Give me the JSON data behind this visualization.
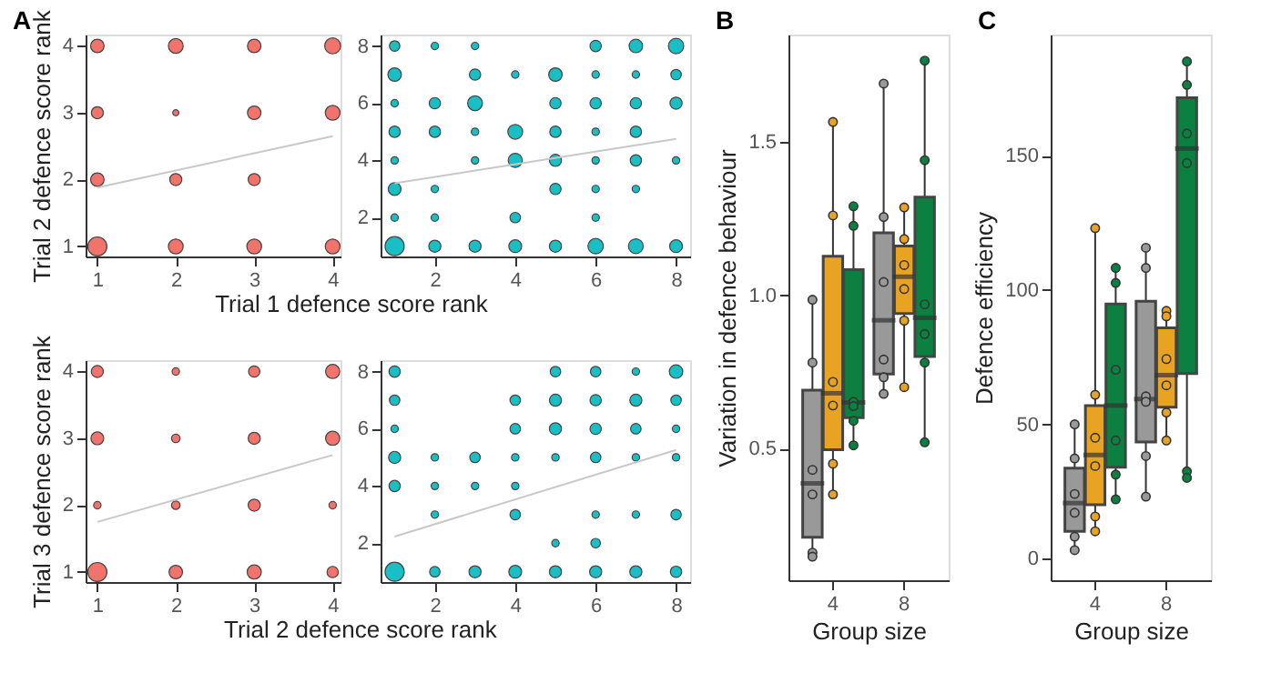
{
  "chart_data": [
    {
      "type": "bubble",
      "title": "A",
      "xlabel": "Trial 1 defence score rank",
      "ylabel": "Trial 2 defence score rank",
      "marker": "circle",
      "xlim": [
        0.85,
        4.1
      ],
      "ylim": [
        0.85,
        4.17
      ],
      "xticks": [
        1,
        2,
        3,
        4
      ],
      "yticks": [
        1,
        2,
        3,
        4
      ],
      "series": [
        {
          "color": "#f0736c",
          "x": [
            1,
            2,
            3,
            4,
            1,
            2,
            3,
            4,
            1,
            2,
            3,
            1,
            2,
            3,
            4
          ],
          "values": [
            4,
            4,
            4,
            4,
            3,
            3,
            3,
            3,
            2,
            2,
            2,
            1,
            1,
            1,
            1
          ],
          "sizes": [
            0.5,
            0.6,
            0.5,
            0.7,
            0.4,
            0.1,
            0.5,
            0.6,
            0.5,
            0.4,
            0.4,
            1,
            0.6,
            0.6,
            0.6
          ]
        },
        {
          "type": "line",
          "marker": "none",
          "color": "#c8c8c8",
          "x": [
            1,
            4
          ],
          "values": [
            1.88,
            2.65
          ]
        }
      ]
    },
    {
      "type": "bubble",
      "marker": "circle",
      "xlim": [
        0.65,
        8.35
      ],
      "ylim": [
        0.64,
        8.4
      ],
      "xticks": [
        2,
        4,
        6,
        8
      ],
      "yticks": [
        2,
        4,
        6,
        8
      ],
      "series": [
        {
          "color": "#19bfc4",
          "x": [
            1,
            2,
            3,
            6,
            7,
            8,
            1,
            3,
            4,
            5,
            6,
            7,
            8,
            1,
            2,
            3,
            5,
            6,
            7,
            8,
            1,
            2,
            3,
            4,
            5,
            6,
            7,
            1,
            3,
            4,
            5,
            6,
            7,
            8,
            1,
            2,
            5,
            6,
            7,
            1,
            2,
            4,
            6,
            1,
            2,
            3,
            4,
            5,
            6,
            7,
            8
          ],
          "values": [
            8,
            8,
            8,
            8,
            8,
            8,
            7,
            7,
            7,
            7,
            7,
            7,
            7,
            6,
            6,
            6,
            6,
            6,
            6,
            6,
            5,
            5,
            5,
            5,
            5,
            5,
            5,
            4,
            4,
            4,
            4,
            4,
            4,
            4,
            3,
            3,
            3,
            3,
            3,
            2,
            2,
            2,
            2,
            1,
            1,
            1,
            1,
            1,
            1,
            1,
            1
          ],
          "sizes": [
            0.3,
            0.15,
            0.15,
            0.35,
            0.5,
            0.65,
            0.5,
            0.35,
            0.15,
            0.5,
            0.15,
            0.15,
            0.3,
            0.15,
            0.35,
            0.6,
            0.35,
            0.35,
            0.35,
            0.4,
            0.35,
            0.35,
            0.15,
            0.6,
            0.35,
            0.15,
            0.35,
            0.15,
            0.15,
            0.55,
            0.4,
            0.15,
            0.35,
            0.15,
            0.45,
            0.15,
            0.35,
            0.15,
            0.15,
            0.15,
            0.15,
            0.3,
            0.15,
            1,
            0.4,
            0.4,
            0.45,
            0.4,
            0.65,
            0.6,
            0.45
          ]
        },
        {
          "type": "line",
          "marker": "none",
          "color": "#c8c8c8",
          "x": [
            1,
            8
          ],
          "values": [
            3.2,
            4.75
          ]
        }
      ]
    },
    {
      "type": "bubble",
      "xlabel": "Trial 2 defence score rank",
      "ylabel": "Trial 3 defence score rank",
      "marker": "circle",
      "xlim": [
        0.85,
        4.1
      ],
      "ylim": [
        0.85,
        4.17
      ],
      "xticks": [
        1,
        2,
        3,
        4
      ],
      "yticks": [
        1,
        2,
        3,
        4
      ],
      "series": [
        {
          "color": "#f0736c",
          "x": [
            1,
            2,
            3,
            4,
            1,
            2,
            3,
            4,
            1,
            2,
            3,
            4,
            1,
            2,
            3,
            4
          ],
          "values": [
            4,
            4,
            4,
            4,
            3,
            3,
            3,
            3,
            2,
            2,
            2,
            2,
            1,
            1,
            1,
            1
          ],
          "sizes": [
            0.4,
            0.15,
            0.35,
            0.55,
            0.45,
            0.2,
            0.4,
            0.55,
            0.15,
            0.2,
            0.4,
            0.15,
            1,
            0.5,
            0.55,
            0.35
          ]
        },
        {
          "type": "line",
          "marker": "none",
          "color": "#c8c8c8",
          "x": [
            1,
            4
          ],
          "values": [
            1.75,
            2.75
          ]
        }
      ]
    },
    {
      "type": "bubble",
      "marker": "circle",
      "xlim": [
        0.65,
        8.35
      ],
      "ylim": [
        0.64,
        8.4
      ],
      "xticks": [
        2,
        4,
        6,
        8
      ],
      "yticks": [
        2,
        4,
        6,
        8
      ],
      "series": [
        {
          "color": "#19bfc4",
          "x": [
            1,
            5,
            6,
            7,
            8,
            1,
            4,
            5,
            6,
            7,
            8,
            1,
            4,
            5,
            6,
            7,
            8,
            1,
            2,
            3,
            4,
            5,
            6,
            7,
            8,
            1,
            2,
            3,
            4,
            2,
            4,
            6,
            7,
            8,
            5,
            6,
            1,
            2,
            3,
            4,
            5,
            6,
            7,
            8
          ],
          "values": [
            8,
            8,
            8,
            8,
            8,
            7,
            7,
            7,
            7,
            7,
            7,
            6,
            6,
            6,
            6,
            6,
            6,
            5,
            5,
            5,
            5,
            5,
            5,
            5,
            5,
            4,
            4,
            4,
            4,
            3,
            3,
            3,
            3,
            3,
            2,
            2,
            1,
            1,
            1,
            1,
            1,
            1,
            1,
            1
          ],
          "sizes": [
            0.35,
            0.3,
            0.3,
            0.15,
            0.5,
            0.3,
            0.3,
            0.4,
            0.35,
            0.4,
            0.3,
            0.15,
            0.3,
            0.4,
            0.35,
            0.3,
            0.15,
            0.4,
            0.15,
            0.3,
            0.15,
            0.15,
            0.3,
            0.15,
            0.15,
            0.35,
            0.15,
            0.15,
            0.15,
            0.15,
            0.3,
            0.15,
            0.15,
            0.3,
            0.15,
            0.25,
            1,
            0.3,
            0.4,
            0.45,
            0.4,
            0.4,
            0.4,
            0.35
          ]
        },
        {
          "type": "line",
          "marker": "none",
          "color": "#c8c8c8",
          "x": [
            1,
            8
          ],
          "values": [
            2.23,
            5.26
          ]
        }
      ]
    },
    {
      "type": "box",
      "title": "B",
      "xlabel": "Group size",
      "ylabel": "Variation in defence behaviour",
      "marker": "circle",
      "categories": [
        "4",
        "8"
      ],
      "ylim": [
        0.07,
        1.85
      ],
      "yticks": [
        0.5,
        {
          "value": 1,
          "label": "1.0"
        },
        1.5
      ],
      "series": [
        {
          "color": "#999999",
          "boxes": [
            {
              "low": 0.147,
              "q1": 0.21,
              "median": 0.386,
              "q3": 0.69,
              "high": 0.985
            },
            {
              "low": 0.678,
              "q1": 0.743,
              "median": 0.918,
              "q3": 1.203,
              "high": 1.69
            }
          ]
        },
        {
          "color": "#e9a323",
          "boxes": [
            {
              "low": 0.35,
              "q1": 0.496,
              "median": 0.68,
              "q3": 1.127,
              "high": 1.565
            },
            {
              "low": 0.7,
              "q1": 0.94,
              "median": 1.06,
              "q3": 1.16,
              "high": 1.286
            }
          ]
        },
        {
          "color": "#0c8041",
          "boxes": [
            {
              "low": 0.51,
              "q1": 0.6,
              "median": 0.65,
              "q3": 1.083,
              "high": 1.29
            },
            {
              "low": 0.52,
              "q1": 0.8,
              "median": 0.926,
              "q3": 1.32,
              "high": 1.765
            }
          ]
        },
        {
          "type": "scatter",
          "color": "#999999",
          "x": [
            "4",
            "4",
            "4",
            "4",
            "4",
            "4",
            "8",
            "8",
            "8",
            "8",
            "8",
            "8"
          ],
          "values": [
            0.985,
            0.78,
            0.43,
            0.35,
            0.16,
            0.147,
            1.69,
            1.255,
            1.043,
            0.79,
            0.732,
            0.678
          ]
        },
        {
          "type": "scatter",
          "color": "#e9a323",
          "x": [
            "4",
            "4",
            "4",
            "4",
            "4",
            "4",
            "8",
            "8",
            "8",
            "8",
            "8",
            "8"
          ],
          "values": [
            1.565,
            1.26,
            0.717,
            0.64,
            0.45,
            0.35,
            1.286,
            1.183,
            1.098,
            1.02,
            0.917,
            0.7
          ]
        },
        {
          "type": "scatter",
          "color": "#0c8041",
          "x": [
            "4",
            "4",
            "4",
            "4",
            "4",
            "4",
            "8",
            "8",
            "8",
            "8",
            "8",
            "8"
          ],
          "values": [
            1.29,
            1.226,
            0.652,
            0.638,
            0.59,
            0.51,
            1.765,
            1.44,
            0.97,
            0.873,
            0.78,
            0.52
          ]
        }
      ]
    },
    {
      "type": "box",
      "title": "C",
      "xlabel": "Group size",
      "ylabel": "Defence efficiency",
      "marker": "circle",
      "categories": [
        "4",
        "8"
      ],
      "ylim": [
        -8,
        195
      ],
      "yticks": [
        0,
        50,
        100,
        150
      ],
      "series": [
        {
          "color": "#999999",
          "boxes": [
            {
              "low": 3.2,
              "q1": 10.2,
              "median": 20.7,
              "q3": 33.7,
              "high": 50
            },
            {
              "low": 23.1,
              "q1": 43.4,
              "median": 59.4,
              "q3": 95.8,
              "high": 115.7
            }
          ]
        },
        {
          "color": "#e9a323",
          "boxes": [
            {
              "low": 10.2,
              "q1": 20.1,
              "median": 38.6,
              "q3": 57,
              "high": 123
            },
            {
              "low": 44,
              "q1": 56.4,
              "median": 68.3,
              "q3": 85.9,
              "high": 92.2
            }
          ]
        },
        {
          "color": "#0c8041",
          "boxes": [
            {
              "low": 22.1,
              "q1": 34,
              "median": 57,
              "q3": 94.8,
              "high": 108.2
            },
            {
              "low": 30.1,
              "q1": 68.9,
              "median": 152.6,
              "q3": 171.5,
              "high": 185
            }
          ]
        },
        {
          "type": "scatter",
          "color": "#999999",
          "x": [
            "4",
            "4",
            "4",
            "4",
            "4",
            "4",
            "8",
            "8",
            "8",
            "8",
            "8",
            "8"
          ],
          "values": [
            50,
            37.3,
            24.1,
            17.1,
            8.2,
            3.2,
            115.7,
            108.2,
            60.4,
            58.4,
            38.2,
            23.1
          ]
        },
        {
          "type": "scatter",
          "color": "#e9a323",
          "x": [
            "4",
            "4",
            "4",
            "4",
            "4",
            "4",
            "8",
            "8",
            "8",
            "8",
            "8",
            "8"
          ],
          "values": [
            123,
            61,
            45,
            34.5,
            15.7,
            10.2,
            92.2,
            90.2,
            74.3,
            64.5,
            54.4,
            44
          ]
        },
        {
          "type": "scatter",
          "color": "#0c8041",
          "x": [
            "4",
            "4",
            "4",
            "4",
            "4",
            "4",
            "8",
            "8",
            "8",
            "8",
            "8",
            "8"
          ],
          "values": [
            108.2,
            102.6,
            70.3,
            44,
            31.3,
            22.1,
            185,
            176.3,
            158.2,
            147.2,
            32.5,
            30.1
          ]
        }
      ]
    }
  ]
}
